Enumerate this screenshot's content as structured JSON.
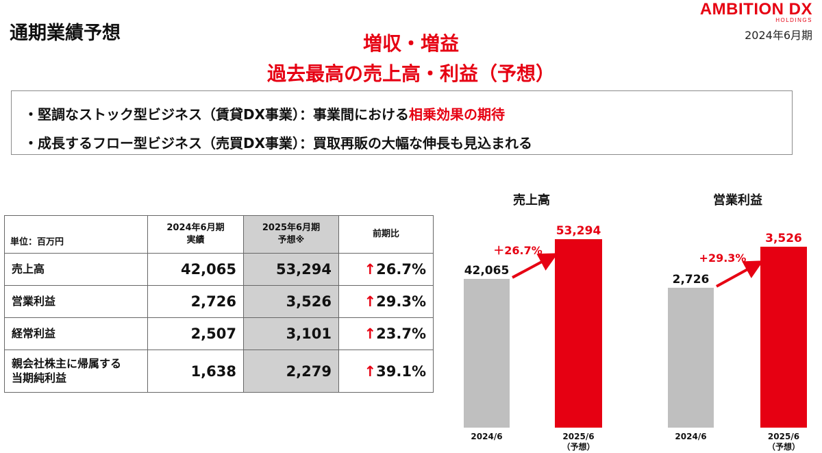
{
  "header": {
    "page_title": "通期業績予想",
    "logo_main": "AMBITION DX",
    "logo_sub": "HOLDINGS",
    "period": "2024年6月期"
  },
  "headline": {
    "line1": "増収・増益",
    "line2": "過去最高の売上高・利益（予想）"
  },
  "messages": {
    "b1_pre": "・堅調なストック型ビジネス（賃貸DX事業）：事業間における",
    "b1_red": "相乗効果の期待",
    "b2": "・成長するフロー型ビジネス（売買DX事業）：買取再販の大幅な伸長も見込まれる"
  },
  "table": {
    "unit": "単位：百万円",
    "col1_l1": "2024年6月期",
    "col1_l2": "実績",
    "col2_l1": "2025年6月期",
    "col2_l2": "予想※",
    "col3": "前期比",
    "arrow": "↑",
    "rows": [
      {
        "label": "売上高",
        "actual": "42,065",
        "forecast": "53,294",
        "ratio": "26.7%"
      },
      {
        "label": "営業利益",
        "actual": "2,726",
        "forecast": "3,526",
        "ratio": "29.3%"
      },
      {
        "label": "経常利益",
        "actual": "2,507",
        "forecast": "3,101",
        "ratio": "23.7%"
      },
      {
        "label_l1": "親会社株主に帰属する",
        "label_l2": "当期純利益",
        "actual": "1,638",
        "forecast": "2,279",
        "ratio": "39.1%"
      }
    ]
  },
  "chart_data": [
    {
      "type": "bar",
      "title": "売上高",
      "categories": [
        "2024/6",
        "2025/6"
      ],
      "category_notes": [
        "",
        "（予想）"
      ],
      "values": [
        42065,
        53294
      ],
      "data_labels": [
        "42,065",
        "53,294"
      ],
      "growth_label": "＋26.7%",
      "colors": [
        "#bfbfbf",
        "#e60012"
      ]
    },
    {
      "type": "bar",
      "title": "営業利益",
      "categories": [
        "2024/6",
        "2025/6"
      ],
      "category_notes": [
        "",
        "（予想）"
      ],
      "values": [
        2726,
        3526
      ],
      "data_labels": [
        "2,726",
        "3,526"
      ],
      "growth_label": "+29.3%",
      "colors": [
        "#bfbfbf",
        "#e60012"
      ]
    }
  ],
  "colors": {
    "accent": "#e60012",
    "gray_bar": "#bfbfbf",
    "table_shade": "#d0d0d0"
  }
}
